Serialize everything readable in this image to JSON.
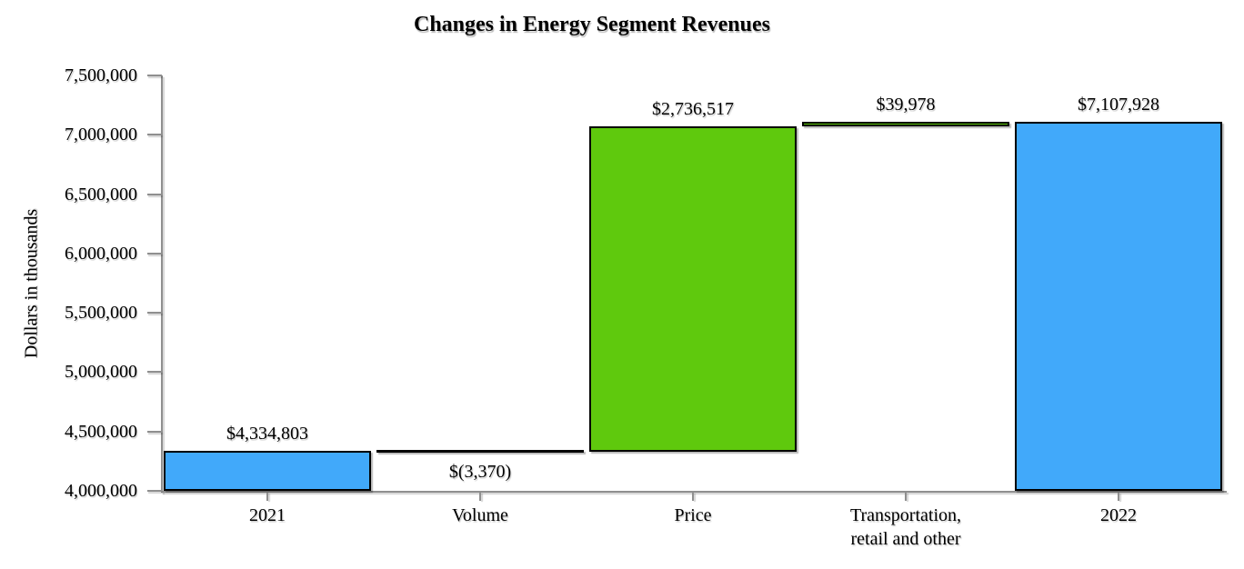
{
  "chart_data": {
    "type": "bar",
    "subtype": "waterfall",
    "title": "Changes in Energy Segment Revenues",
    "xlabel": "",
    "ylabel": "Dollars in thousands",
    "grid": false,
    "legend": false,
    "categories": [
      "2021",
      "Volume",
      "Price",
      "Transportation,\nretail and other",
      "2022"
    ],
    "y_axis": {
      "min": 4000000,
      "max": 7500000,
      "tick_interval": 500000,
      "tick_labels": [
        "7,500,000",
        "7,000,000",
        "6,500,000",
        "6,000,000",
        "5,500,000",
        "5,000,000",
        "4,500,000",
        "4,000,000"
      ]
    },
    "bars": [
      {
        "category": "2021",
        "label": "$4,334,803",
        "value": 4334803,
        "start": 4000000,
        "end": 4334803,
        "role": "total",
        "color": "#41a9fa",
        "label_position": "above"
      },
      {
        "category": "Volume",
        "label": "$(3,370)",
        "value": -3370,
        "start": 4334803,
        "end": 4331433,
        "role": "decrease",
        "color": "#000000",
        "label_position": "below"
      },
      {
        "category": "Price",
        "label": "$2,736,517",
        "value": 2736517,
        "start": 4331433,
        "end": 7067950,
        "role": "increase",
        "color": "#5fc90d",
        "label_position": "above"
      },
      {
        "category": "Transportation,\nretail and other",
        "label": "$39,978",
        "value": 39978,
        "start": 7067950,
        "end": 7107928,
        "role": "increase",
        "color": "#5fc90d",
        "label_position": "above"
      },
      {
        "category": "2022",
        "label": "$7,107,928",
        "value": 7107928,
        "start": 4000000,
        "end": 7107928,
        "role": "total",
        "color": "#41a9fa",
        "label_position": "above"
      }
    ],
    "colors": {
      "total_bar": "#41a9fa",
      "increase_bar": "#5fc90d",
      "decrease_bar": "#000000",
      "axis": "#8f8f8f",
      "text": "#000000",
      "background": "#ffffff"
    }
  }
}
